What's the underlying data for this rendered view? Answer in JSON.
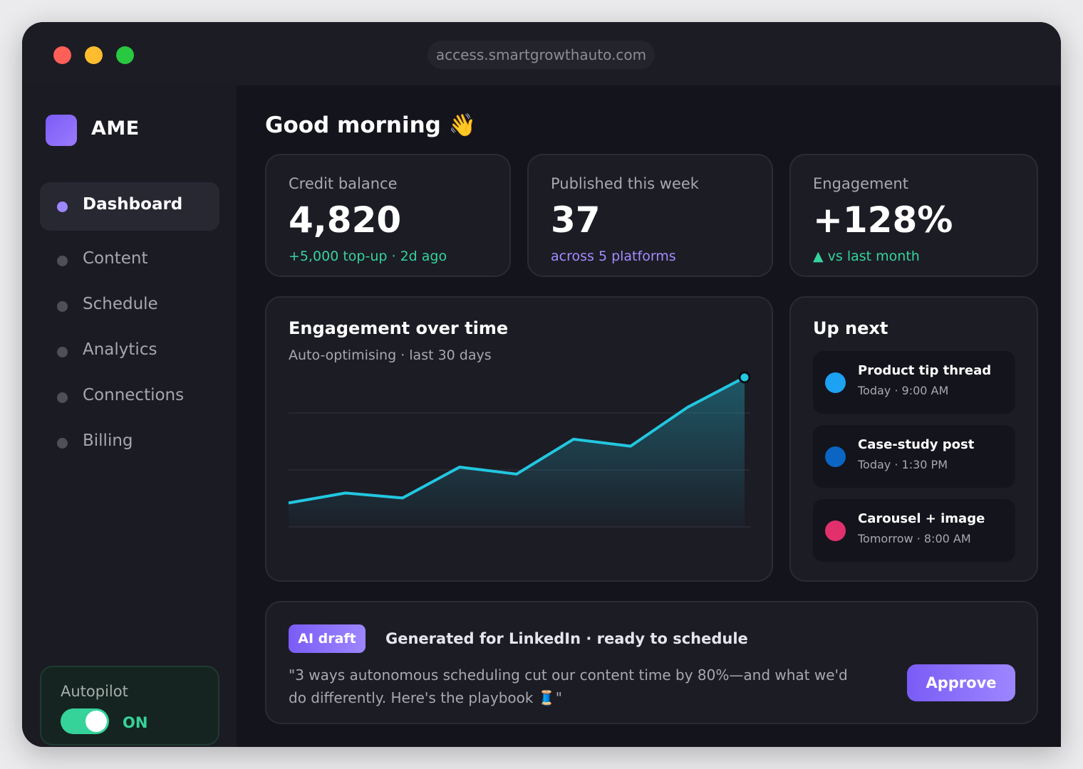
{
  "browser": {
    "url": "access.smartgrowthauto.com"
  },
  "sidebar": {
    "brand": "AME",
    "items": [
      {
        "label": "Dashboard",
        "active": true
      },
      {
        "label": "Content",
        "active": false
      },
      {
        "label": "Schedule",
        "active": false
      },
      {
        "label": "Analytics",
        "active": false
      },
      {
        "label": "Connections",
        "active": false
      },
      {
        "label": "Billing",
        "active": false
      }
    ],
    "autopilot": {
      "label": "Autopilot",
      "state": "ON",
      "enabled": true
    }
  },
  "main": {
    "greeting": "Good morning 👋",
    "stats": [
      {
        "label": "Credit balance",
        "value": "4,820",
        "sub": "+5,000 top-up · 2d ago",
        "sub_color": "#35d39a"
      },
      {
        "label": "Published this week",
        "value": "37",
        "sub": "across 5 platforms",
        "sub_color": "#a48cff"
      },
      {
        "label": "Engagement",
        "value": "+128%",
        "sub": "▲ vs last month",
        "sub_color": "#35d39a"
      }
    ],
    "chart": {
      "title": "Engagement over time",
      "subtitle": "Auto-optimising · last 30 days"
    },
    "up_next": {
      "title": "Up next",
      "items": [
        {
          "name": "Product tip thread",
          "time": "Today · 9:00 AM",
          "color": "#1da1f2"
        },
        {
          "name": "Case-study post",
          "time": "Today · 1:30 PM",
          "color": "#0a66c2"
        },
        {
          "name": "Carousel + image",
          "time": "Tomorrow · 8:00 AM",
          "color": "#e1306c"
        }
      ]
    },
    "draft": {
      "badge": "AI draft",
      "heading": "Generated for LinkedIn · ready to schedule",
      "body": "\"3 ways autonomous scheduling cut our content time by 80%—and what we'd do differently. Here's the playbook 🧵\"",
      "approve_label": "Approve"
    }
  },
  "chart_data": {
    "type": "area",
    "x": [
      1,
      2,
      3,
      4,
      5,
      6,
      7,
      8,
      9
    ],
    "values": [
      24,
      34,
      29,
      60,
      53,
      88,
      81,
      120,
      150
    ],
    "ylim": [
      0,
      170
    ],
    "grid": true,
    "color": "#22c7e0",
    "title": "Engagement over time",
    "xlabel": "",
    "ylabel": ""
  }
}
